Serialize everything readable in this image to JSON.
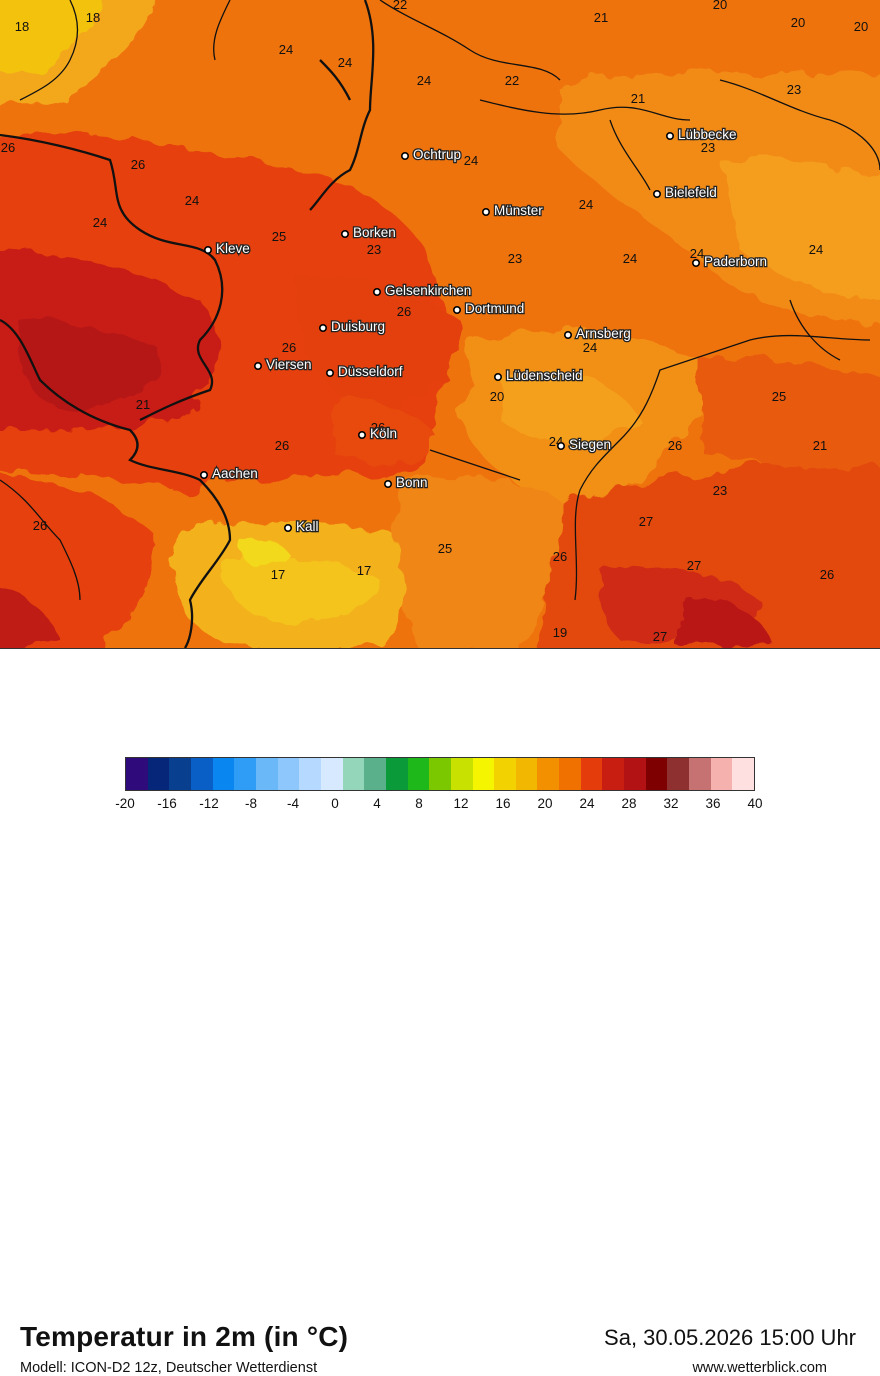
{
  "title": "Temperatur in 2m (in °C)",
  "model": "Modell: ICON-D2 12z, Deutscher Wetterdienst",
  "date": "Sa, 30.05.2026 15:00 Uhr",
  "site": "www.wetterblick.com",
  "legend": {
    "labels": [
      "-20",
      "-16",
      "-12",
      "-8",
      "-4",
      "0",
      "4",
      "8",
      "12",
      "16",
      "20",
      "24",
      "28",
      "32",
      "36",
      "40"
    ],
    "colors": [
      "#2e0a7a",
      "#06267a",
      "#083f8f",
      "#0a5fc6",
      "#0a86f0",
      "#2f9df5",
      "#6bb8f8",
      "#8ec7fb",
      "#b6daff",
      "#d6e9ff",
      "#93d6b9",
      "#5bb08c",
      "#0b9a3a",
      "#1eb81a",
      "#7cc800",
      "#c9e100",
      "#f5f500",
      "#f2d200",
      "#f2b700",
      "#f29000",
      "#f07000",
      "#e53c0c",
      "#c81e12",
      "#b31214",
      "#7e0000",
      "#8e3030",
      "#c77272",
      "#f5b1ad",
      "#ffe0e0"
    ]
  },
  "cities": [
    {
      "name": "Ochtrup"
    },
    {
      "name": "Lübbecke"
    },
    {
      "name": "Bielefeld"
    },
    {
      "name": "Münster"
    },
    {
      "name": "Kleve"
    },
    {
      "name": "Borken"
    },
    {
      "name": "Paderborn"
    },
    {
      "name": "Gelsenkirchen"
    },
    {
      "name": "Dortmund"
    },
    {
      "name": "Duisburg"
    },
    {
      "name": "Arnsberg"
    },
    {
      "name": "Viersen"
    },
    {
      "name": "Düsseldorf"
    },
    {
      "name": "Lüdenscheid"
    },
    {
      "name": "Köln"
    },
    {
      "name": "Siegen"
    },
    {
      "name": "Aachen"
    },
    {
      "name": "Bonn"
    },
    {
      "name": "Kall"
    }
  ],
  "temperatures": [
    {
      "t": "18"
    },
    {
      "t": "18"
    },
    {
      "t": "22"
    },
    {
      "t": "21"
    },
    {
      "t": "20"
    },
    {
      "t": "20"
    },
    {
      "t": "20"
    },
    {
      "t": "24"
    },
    {
      "t": "24"
    },
    {
      "t": "24"
    },
    {
      "t": "22"
    },
    {
      "t": "21"
    },
    {
      "t": "23"
    },
    {
      "t": "26"
    },
    {
      "t": "26"
    },
    {
      "t": "24"
    },
    {
      "t": "23"
    },
    {
      "t": "24"
    },
    {
      "t": "24"
    },
    {
      "t": "24"
    },
    {
      "t": "24"
    },
    {
      "t": "25"
    },
    {
      "t": "23"
    },
    {
      "t": "23"
    },
    {
      "t": "24"
    },
    {
      "t": "24"
    },
    {
      "t": "23"
    },
    {
      "t": "26"
    },
    {
      "t": "26"
    },
    {
      "t": "24"
    },
    {
      "t": "21"
    },
    {
      "t": "20"
    },
    {
      "t": "25"
    },
    {
      "t": "26"
    },
    {
      "t": "26"
    },
    {
      "t": "24"
    },
    {
      "t": "26"
    },
    {
      "t": "21"
    },
    {
      "t": "23"
    },
    {
      "t": "26"
    },
    {
      "t": "27"
    },
    {
      "t": "25"
    },
    {
      "t": "26"
    },
    {
      "t": "17"
    },
    {
      "t": "17"
    },
    {
      "t": "27"
    },
    {
      "t": "26"
    },
    {
      "t": "19"
    },
    {
      "t": "27"
    }
  ]
}
